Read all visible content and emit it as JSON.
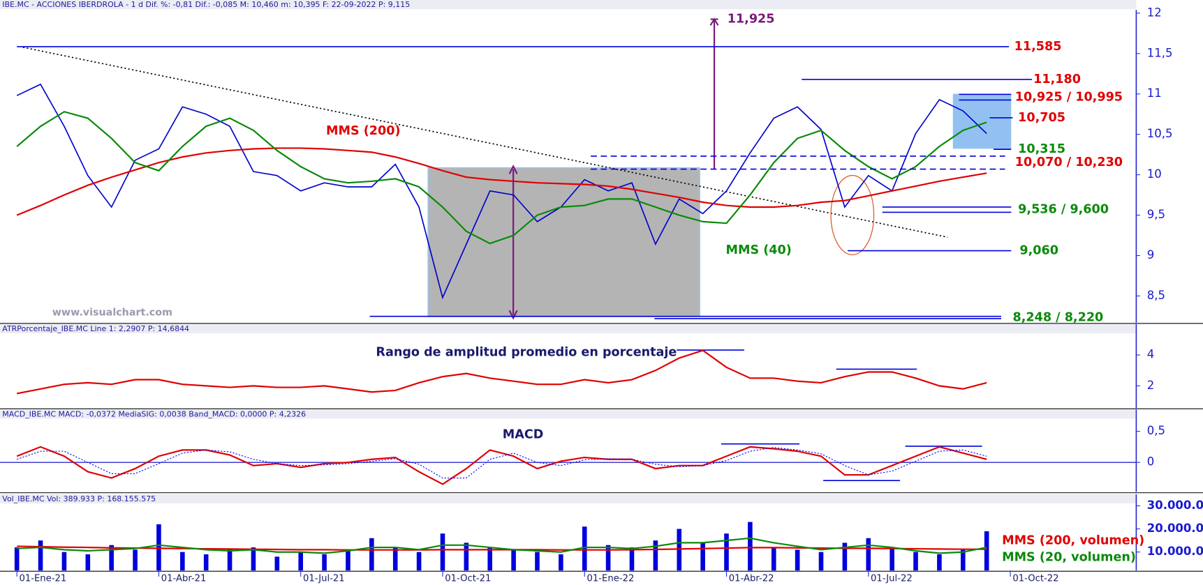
{
  "chart_data": [
    {
      "type": "line",
      "header": "IBE.MC - ACCIONES IBERDROLA -  1 d  Dif. %: -0,81  Dif.: -0,085  M: 10,460  m: 10,395  F: 22-09-2022  P: 9,115",
      "watermark": "www.visualchart.com",
      "ylim": [
        8.17,
        12.04
      ],
      "yticks": [
        {
          "value": 12,
          "label": "12"
        },
        {
          "value": 11.5,
          "label": "11,5"
        },
        {
          "value": 11,
          "label": "11"
        },
        {
          "value": 10.5,
          "label": "10,5"
        },
        {
          "value": 10,
          "label": "10"
        },
        {
          "value": 9.5,
          "label": "9,5"
        },
        {
          "value": 9,
          "label": "9"
        },
        {
          "value": 8.5,
          "label": "8,5"
        }
      ],
      "series": [
        {
          "color": "#0000cc",
          "values": [
            10.98,
            11.12,
            10.6,
            9.99,
            9.6,
            10.18,
            10.32,
            10.84,
            10.75,
            10.6,
            10.04,
            9.99,
            9.8,
            9.9,
            9.85,
            9.85,
            10.13,
            9.6,
            8.48,
            9.14,
            9.8,
            9.75,
            9.42,
            9.6,
            9.94,
            9.8,
            9.9,
            9.14,
            9.7,
            9.52,
            9.8,
            10.27,
            10.7,
            10.84,
            10.56,
            9.6,
            9.99,
            9.8,
            10.51,
            10.93,
            10.79,
            10.51,
            null
          ]
        },
        {
          "name": "MMS (200)",
          "color": "#e00000",
          "values": [
            9.5,
            9.62,
            9.75,
            9.87,
            9.97,
            10.06,
            10.15,
            10.22,
            10.27,
            10.3,
            10.32,
            10.33,
            10.33,
            10.32,
            10.3,
            10.28,
            10.22,
            10.14,
            10.05,
            9.97,
            9.94,
            9.92,
            9.9,
            9.89,
            9.88,
            9.86,
            9.82,
            9.77,
            9.72,
            9.66,
            9.62,
            9.6,
            9.6,
            9.62,
            9.66,
            9.68,
            9.74,
            9.8,
            9.86,
            9.92,
            9.97,
            10.02,
            null
          ]
        },
        {
          "name": "MMS (40)",
          "color": "#0a8a0a",
          "values": [
            10.35,
            10.6,
            10.78,
            10.7,
            10.45,
            10.15,
            10.05,
            10.35,
            10.6,
            10.7,
            10.55,
            10.3,
            10.1,
            9.95,
            9.9,
            9.92,
            9.95,
            9.85,
            9.6,
            9.3,
            9.15,
            9.25,
            9.5,
            9.6,
            9.62,
            9.7,
            9.7,
            9.6,
            9.5,
            9.42,
            9.4,
            9.75,
            10.15,
            10.45,
            10.55,
            10.3,
            10.1,
            9.95,
            10.1,
            10.35,
            10.55,
            10.65,
            null
          ]
        }
      ],
      "levels": [
        {
          "label": "11,925",
          "values": [
            11.925
          ],
          "color": "#7b1a7b"
        },
        {
          "label": "11,585",
          "values": [
            11.585
          ],
          "color": "#e00000"
        },
        {
          "label": "11,180",
          "values": [
            11.18
          ],
          "color": "#e00000"
        },
        {
          "label": "10,925 / 10,995",
          "values": [
            10.925,
            10.995
          ],
          "color": "#e00000"
        },
        {
          "label": "10,705",
          "values": [
            10.705
          ],
          "color": "#e00000"
        },
        {
          "label": "10,315",
          "values": [
            10.315
          ],
          "color": "#0a8a0a"
        },
        {
          "label": "10,070 / 10,230",
          "values": [
            10.07,
            10.23
          ],
          "color": "#e00000"
        },
        {
          "label": "9,536 / 9,600",
          "values": [
            9.536,
            9.6
          ],
          "color": "#0a8a0a"
        },
        {
          "label": "9,060",
          "values": [
            9.06
          ],
          "color": "#0a8a0a"
        },
        {
          "label": "8,248 / 8,220",
          "values": [
            8.248,
            8.22
          ],
          "color": "#0a8a0a"
        }
      ]
    },
    {
      "type": "line",
      "header": "ATRPorcentaje_IBE.MC  Line 1: 2,2907  P: 14,6844",
      "annotation": "Rango de amplitud promedio en porcentaje",
      "ylim": [
        0.56,
        6
      ],
      "yticks": [
        4,
        2
      ],
      "series": [
        {
          "color": "#e00000",
          "values": [
            1.5,
            1.8,
            2.1,
            2.2,
            2.1,
            2.4,
            2.4,
            2.1,
            2.0,
            1.9,
            2.0,
            1.9,
            1.9,
            2.0,
            1.8,
            1.6,
            1.7,
            2.2,
            2.6,
            2.8,
            2.5,
            2.3,
            2.1,
            2.1,
            2.4,
            2.2,
            2.4,
            3.0,
            3.8,
            4.3,
            3.2,
            2.5,
            2.5,
            2.3,
            2.2,
            2.6,
            2.9,
            2.9,
            2.5,
            2.0,
            1.8,
            2.2,
            null
          ]
        }
      ]
    },
    {
      "type": "line",
      "header": "MACD_IBE.MC  MACD: -0,0372  MediaSIG: 0,0038  Band_MACD: 0,0000  P: 4,2326",
      "annotation": "MACD",
      "ylim": [
        -0.475,
        0.85
      ],
      "yticks": [
        {
          "value": 0.5,
          "label": "0,5"
        },
        0
      ],
      "series": [
        {
          "color": "#e00000",
          "values": [
            0.1,
            0.25,
            0.1,
            -0.15,
            -0.25,
            -0.1,
            0.1,
            0.2,
            0.2,
            0.12,
            -0.05,
            -0.02,
            -0.08,
            -0.02,
            0.0,
            0.05,
            0.08,
            -0.15,
            -0.35,
            -0.1,
            0.2,
            0.1,
            -0.1,
            0.02,
            0.08,
            0.05,
            0.05,
            -0.1,
            -0.05,
            -0.05,
            0.1,
            0.25,
            0.22,
            0.18,
            0.1,
            -0.2,
            -0.2,
            -0.05,
            0.1,
            0.25,
            0.15,
            0.05,
            null
          ]
        },
        {
          "color": "#0000ff",
          "values": [
            0.05,
            0.18,
            0.18,
            0.0,
            -0.18,
            -0.18,
            -0.02,
            0.15,
            0.2,
            0.17,
            0.05,
            -0.02,
            -0.05,
            -0.04,
            -0.02,
            0.02,
            0.06,
            -0.03,
            -0.25,
            -0.25,
            0.05,
            0.15,
            0.0,
            -0.05,
            0.04,
            0.06,
            0.05,
            -0.03,
            -0.07,
            -0.05,
            0.03,
            0.18,
            0.24,
            0.2,
            0.14,
            -0.05,
            -0.2,
            -0.14,
            0.02,
            0.18,
            0.2,
            0.1,
            null
          ]
        }
      ]
    },
    {
      "type": "bar",
      "header": "Vol_IBE.MC  Vol: 389.933  P: 168.155.575",
      "categories": [
        "01-Ene-21",
        null,
        null,
        null,
        null,
        null,
        "01-Abr-21",
        null,
        null,
        null,
        null,
        null,
        "01-Jul-21",
        null,
        null,
        null,
        null,
        null,
        "01-Oct-21",
        null,
        null,
        null,
        null,
        null,
        "01-Ene-22",
        null,
        null,
        null,
        null,
        null,
        "01-Abr-22",
        null,
        null,
        null,
        null,
        null,
        "01-Jul-22",
        null,
        null,
        null,
        null,
        null,
        "01-Oct-22"
      ],
      "ylim": [
        2000000,
        35000000
      ],
      "yticks": [
        {
          "value": 30000000,
          "label": "30.000.000"
        },
        {
          "value": 20000000,
          "label": "20.000.000"
        },
        {
          "value": 10000000,
          "label": "10.000.000"
        }
      ],
      "series": [
        {
          "color": "#0000dd",
          "values": [
            12000000,
            15000000,
            10000000,
            9000000,
            13000000,
            11000000,
            22000000,
            10000000,
            9000000,
            11000000,
            12000000,
            8000000,
            10000000,
            9000000,
            11000000,
            16000000,
            12000000,
            10000000,
            18000000,
            14000000,
            12000000,
            11000000,
            10000000,
            9000000,
            21000000,
            13000000,
            12000000,
            15000000,
            20000000,
            14000000,
            18000000,
            23000000,
            12000000,
            11000000,
            10000000,
            14000000,
            16000000,
            12000000,
            10000000,
            9000000,
            11000000,
            19000000,
            null
          ]
        },
        {
          "name": "MMS (200, volumen)",
          "type": "line",
          "color": "#e00000",
          "values": [
            12500000,
            12300000,
            12100000,
            12000000,
            11800000,
            11700000,
            11600000,
            11500000,
            11400000,
            11300000,
            11200000,
            11100000,
            11000000,
            11000000,
            10900000,
            10900000,
            10900000,
            10900000,
            11000000,
            11000000,
            11000000,
            11000000,
            11000000,
            10900000,
            10900000,
            10900000,
            11000000,
            11100000,
            11300000,
            11500000,
            11700000,
            11900000,
            11900000,
            11800000,
            11700000,
            11600000,
            11600000,
            11500000,
            11400000,
            11300000,
            11200000,
            11200000,
            null
          ]
        },
        {
          "name": "MMS (20, volumen)",
          "type": "line",
          "color": "#0a8a0a",
          "values": [
            11500000,
            12000000,
            11000000,
            10500000,
            11000000,
            11500000,
            13000000,
            12000000,
            11000000,
            10500000,
            11000000,
            10000000,
            10000000,
            9500000,
            10500000,
            12000000,
            12000000,
            11000000,
            13000000,
            13000000,
            12000000,
            11000000,
            10500000,
            10000000,
            12000000,
            12000000,
            11500000,
            12500000,
            14000000,
            14000000,
            15000000,
            16000000,
            14000000,
            12500000,
            11000000,
            12000000,
            13000000,
            12000000,
            10500000,
            9500000,
            10000000,
            12000000,
            null
          ]
        }
      ]
    }
  ]
}
